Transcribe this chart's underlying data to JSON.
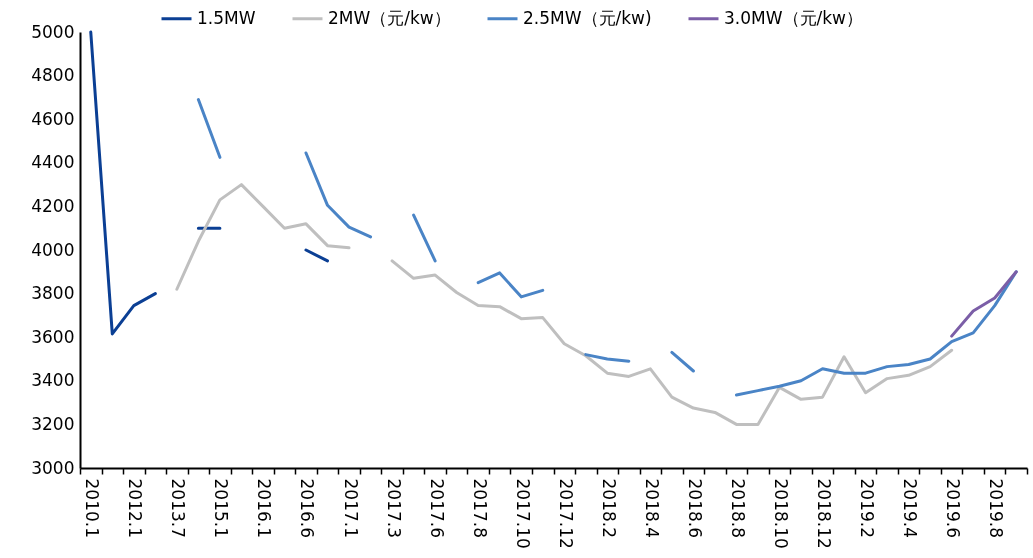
{
  "chart_data": {
    "type": "line",
    "categories": [
      "2010.1",
      null,
      "2012.1",
      null,
      "2013.7",
      null,
      "2015.1",
      null,
      "2016.1",
      null,
      "2016.6",
      null,
      "2017.1",
      null,
      "2017.3",
      null,
      "2017.6",
      null,
      "2017.8",
      null,
      "2017.10",
      null,
      "2017.12",
      null,
      "2018.2",
      null,
      "2018.4",
      null,
      "2018.6",
      null,
      "2018.8",
      null,
      "2018.10",
      null,
      "2018.12",
      null,
      "2019.2",
      null,
      "2019.4",
      null,
      "2019.6",
      null,
      "2019.8",
      null
    ],
    "series": [
      {
        "name": "1.5MW",
        "color": "#0b3f94",
        "values": [
          5000,
          3615,
          3745,
          3800,
          null,
          4100,
          4100,
          null,
          null,
          null,
          4000,
          3950,
          null,
          null,
          null,
          null,
          null,
          null,
          null,
          null,
          null,
          null,
          null,
          null,
          null,
          null,
          null,
          null,
          null,
          null,
          null,
          null,
          null,
          null,
          null,
          null,
          null,
          null,
          null,
          null,
          null,
          null,
          null,
          null
        ]
      },
      {
        "name": "2MW（元/kw）",
        "color": "#bfbfbf",
        "values": [
          null,
          null,
          null,
          null,
          3820,
          4040,
          4230,
          4300,
          4200,
          4100,
          4120,
          4020,
          4010,
          null,
          3950,
          3870,
          3885,
          3805,
          3745,
          3740,
          3685,
          3690,
          3570,
          3515,
          3435,
          3420,
          3455,
          3325,
          3275,
          3255,
          3200,
          3200,
          3370,
          3315,
          3325,
          3510,
          3345,
          3410,
          3425,
          3465,
          3540,
          null,
          null,
          null
        ]
      },
      {
        "name": "2.5MW（元/kw)",
        "color": "#4a84c6",
        "values": [
          null,
          null,
          null,
          null,
          null,
          4690,
          4425,
          null,
          null,
          null,
          4445,
          4205,
          4105,
          4060,
          null,
          4160,
          3950,
          null,
          3850,
          3895,
          3785,
          3815,
          null,
          3520,
          3500,
          3490,
          null,
          3530,
          3445,
          null,
          3335,
          3355,
          3375,
          3400,
          3455,
          3435,
          3435,
          3465,
          3475,
          3500,
          3580,
          3620,
          3745,
          3900
        ]
      },
      {
        "name": "3.0MW（元/kw）",
        "color": "#7b5ea7",
        "values": [
          null,
          null,
          null,
          null,
          null,
          null,
          null,
          null,
          null,
          null,
          null,
          null,
          null,
          null,
          null,
          null,
          null,
          null,
          null,
          null,
          null,
          null,
          null,
          null,
          null,
          null,
          null,
          null,
          null,
          null,
          null,
          null,
          null,
          null,
          null,
          null,
          null,
          null,
          null,
          null,
          3605,
          3720,
          3780,
          3900
        ]
      }
    ],
    "ylim": [
      3000,
      5000
    ],
    "yticks": [
      3000,
      3200,
      3400,
      3600,
      3800,
      4000,
      4200,
      4400,
      4600,
      4800,
      5000
    ],
    "grid": false,
    "legend": "top"
  }
}
